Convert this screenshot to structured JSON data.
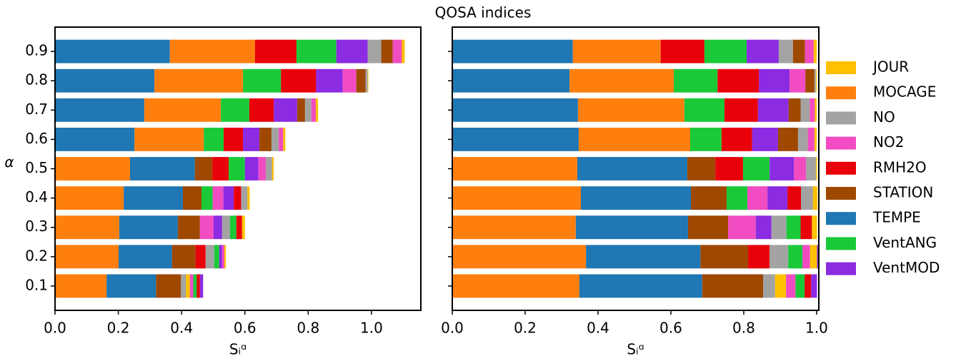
{
  "title": "QOSA indices",
  "chart_data": [
    {
      "type": "bar",
      "orientation": "horizontal",
      "stacked": true,
      "ylabel": "α",
      "xlabel": "Sᵢᵅ",
      "categories": [
        "0.1",
        "0.2",
        "0.3",
        "0.4",
        "0.5",
        "0.6",
        "0.7",
        "0.8",
        "0.9"
      ],
      "xlim": [
        0,
        1.156
      ],
      "xticks": [
        {
          "value": 0,
          "label": "0.0"
        },
        {
          "value": 0.2,
          "label": "0.2"
        },
        {
          "value": 0.4,
          "label": "0.4"
        },
        {
          "value": 0.6,
          "label": "0.6"
        },
        {
          "value": 0.8,
          "label": "0.8"
        },
        {
          "value": 1,
          "label": "1.0"
        }
      ],
      "series": [
        {
          "name": "JOUR",
          "color": "#ffc000",
          "values": [
            0.012,
            0.005,
            0.009,
            0.007,
            0.005,
            0.007,
            0.007,
            0.002,
            0.009
          ]
        },
        {
          "name": "MOCAGE",
          "color": "#ff7f0e",
          "values": [
            0.163,
            0.201,
            0.203,
            0.217,
            0.237,
            0.219,
            0.242,
            0.28,
            0.269
          ]
        },
        {
          "name": "NO",
          "color": "#a3a3a3",
          "values": [
            0.016,
            0.027,
            0.025,
            0.02,
            0.02,
            0.023,
            0.02,
            0.007,
            0.043
          ]
        },
        {
          "name": "NO2",
          "color": "#f14cc1",
          "values": [
            0.011,
            0.007,
            0.043,
            0.034,
            0.023,
            0.014,
            0.014,
            0.043,
            0.029
          ]
        },
        {
          "name": "RMH2O",
          "color": "#e8000b",
          "values": [
            0.01,
            0.032,
            0.018,
            0.023,
            0.052,
            0.061,
            0.077,
            0.111,
            0.131
          ]
        },
        {
          "name": "STATION",
          "color": "#9f4800",
          "values": [
            0.079,
            0.074,
            0.07,
            0.059,
            0.055,
            0.038,
            0.025,
            0.029,
            0.036
          ]
        },
        {
          "name": "TEMPE",
          "color": "#1f77b4",
          "values": [
            0.156,
            0.169,
            0.185,
            0.187,
            0.205,
            0.251,
            0.282,
            0.314,
            0.363
          ]
        },
        {
          "name": "VentANG",
          "color": "#1ac938",
          "values": [
            0.011,
            0.016,
            0.02,
            0.035,
            0.051,
            0.063,
            0.09,
            0.12,
            0.126
          ]
        },
        {
          "name": "VentMOD",
          "color": "#8b2be2",
          "values": [
            0.01,
            0.009,
            0.027,
            0.033,
            0.043,
            0.052,
            0.074,
            0.084,
            0.099
          ]
        }
      ]
    },
    {
      "type": "bar",
      "orientation": "horizontal",
      "stacked": true,
      "xlabel": "Sᵢᵅ",
      "categories": [
        "0.1",
        "0.2",
        "0.3",
        "0.4",
        "0.5",
        "0.6",
        "0.7",
        "0.8",
        "0.9"
      ],
      "xlim": [
        0,
        1.006
      ],
      "xticks": [
        {
          "value": 0,
          "label": "0.0"
        },
        {
          "value": 0.2,
          "label": "0.2"
        },
        {
          "value": 0.4,
          "label": "0.4"
        },
        {
          "value": 0.6,
          "label": "0.6"
        },
        {
          "value": 0.8,
          "label": "0.8"
        },
        {
          "value": 1,
          "label": "1.0"
        }
      ],
      "series": [
        {
          "name": "JOUR",
          "color": "#ffc000",
          "values": [
            0.03,
            0.019,
            0.014,
            0.012,
            0.003,
            0.006,
            0.005,
            0.002,
            0.008
          ]
        },
        {
          "name": "MOCAGE",
          "color": "#ff7f0e",
          "values": [
            0.349,
            0.367,
            0.339,
            0.353,
            0.343,
            0.306,
            0.292,
            0.286,
            0.241
          ]
        },
        {
          "name": "NO",
          "color": "#a3a3a3",
          "values": [
            0.033,
            0.051,
            0.041,
            0.033,
            0.027,
            0.027,
            0.025,
            0.004,
            0.039
          ]
        },
        {
          "name": "NO2",
          "color": "#f14cc1",
          "values": [
            0.026,
            0.021,
            0.076,
            0.055,
            0.033,
            0.018,
            0.014,
            0.043,
            0.024
          ]
        },
        {
          "name": "RMH2O",
          "color": "#e8000b",
          "values": [
            0.018,
            0.059,
            0.031,
            0.037,
            0.076,
            0.084,
            0.092,
            0.114,
            0.12
          ]
        },
        {
          "name": "STATION",
          "color": "#9f4800",
          "values": [
            0.167,
            0.131,
            0.11,
            0.098,
            0.077,
            0.055,
            0.033,
            0.025,
            0.033
          ]
        },
        {
          "name": "TEMPE",
          "color": "#1f77b4",
          "values": [
            0.337,
            0.314,
            0.308,
            0.302,
            0.302,
            0.347,
            0.345,
            0.322,
            0.331
          ]
        },
        {
          "name": "VentANG",
          "color": "#1ac938",
          "values": [
            0.025,
            0.039,
            0.039,
            0.057,
            0.073,
            0.086,
            0.11,
            0.12,
            0.116
          ]
        },
        {
          "name": "VentMOD",
          "color": "#8b2be2",
          "values": [
            0.016,
            0.004,
            0.043,
            0.055,
            0.067,
            0.071,
            0.084,
            0.084,
            0.088
          ]
        }
      ]
    }
  ]
}
